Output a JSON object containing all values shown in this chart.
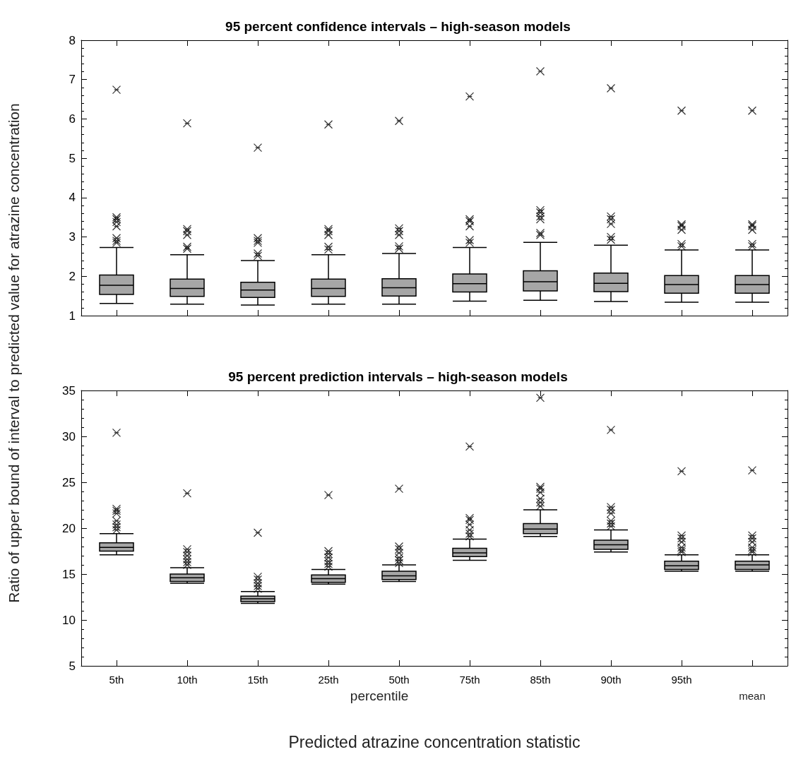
{
  "chart_data": [
    {
      "type": "box",
      "title": "95 percent confidence intervals – high-season models",
      "ylabel": "Ratio of upper bound of interval to predicted value for atrazine concentration",
      "categories": [
        null,
        null,
        null,
        null,
        null,
        null,
        null,
        null,
        null,
        null
      ],
      "color": "#a6a6a6",
      "ylim": [
        1,
        8
      ],
      "yticks": [
        1,
        2,
        3,
        4,
        5,
        6,
        7,
        8
      ],
      "tick_labels": "y",
      "grid": false,
      "boxes": [
        {
          "low": 1.31,
          "q1": 1.54,
          "median": 1.77,
          "q3": 2.03,
          "high": 2.73,
          "outliers": [
            6.74,
            3.5,
            3.45,
            3.38,
            3.27,
            2.97,
            2.9,
            2.85
          ]
        },
        {
          "low": 1.29,
          "q1": 1.49,
          "median": 1.69,
          "q3": 1.93,
          "high": 2.55,
          "outliers": [
            5.89,
            3.2,
            3.15,
            3.05,
            2.75,
            2.7
          ]
        },
        {
          "low": 1.27,
          "q1": 1.46,
          "median": 1.65,
          "q3": 1.85,
          "high": 2.4,
          "outliers": [
            5.27,
            2.97,
            2.9,
            2.85,
            2.58,
            2.52
          ]
        },
        {
          "low": 1.29,
          "q1": 1.49,
          "median": 1.69,
          "q3": 1.93,
          "high": 2.55,
          "outliers": [
            5.86,
            3.2,
            3.15,
            3.05,
            2.75,
            2.68
          ]
        },
        {
          "low": 1.29,
          "q1": 1.5,
          "median": 1.71,
          "q3": 1.94,
          "high": 2.58,
          "outliers": [
            5.95,
            3.22,
            3.15,
            3.05,
            2.76,
            2.7
          ]
        },
        {
          "low": 1.37,
          "q1": 1.6,
          "median": 1.81,
          "q3": 2.06,
          "high": 2.73,
          "outliers": [
            6.57,
            3.45,
            3.4,
            3.27,
            2.92,
            2.85
          ]
        },
        {
          "low": 1.39,
          "q1": 1.63,
          "median": 1.86,
          "q3": 2.14,
          "high": 2.86,
          "outliers": [
            7.21,
            3.68,
            3.62,
            3.52,
            3.45,
            3.1,
            3.05
          ]
        },
        {
          "low": 1.36,
          "q1": 1.61,
          "median": 1.82,
          "q3": 2.08,
          "high": 2.79,
          "outliers": [
            6.78,
            3.52,
            3.45,
            3.33,
            3.0,
            2.93
          ]
        },
        {
          "low": 1.34,
          "q1": 1.57,
          "median": 1.79,
          "q3": 2.02,
          "high": 2.67,
          "outliers": [
            6.21,
            3.32,
            3.28,
            3.18,
            2.82,
            2.76
          ]
        },
        {
          "low": 1.34,
          "q1": 1.57,
          "median": 1.79,
          "q3": 2.02,
          "high": 2.67,
          "outliers": [
            6.21,
            3.32,
            3.28,
            3.18,
            2.82,
            2.76
          ]
        }
      ]
    },
    {
      "type": "box",
      "title": "95 percent prediction intervals – high-season models",
      "xlabel": "Predicted atrazine concentration statistic",
      "annotations": [
        "percentile",
        "mean"
      ],
      "categories": [
        "5th",
        "10th",
        "15th",
        "25th",
        "50th",
        "75th",
        "85th",
        "90th",
        "95th",
        null
      ],
      "color": "#a6a6a6",
      "ylim": [
        5,
        35
      ],
      "yticks": [
        5,
        10,
        15,
        20,
        25,
        30,
        35
      ],
      "grid": false,
      "boxes": [
        {
          "low": 17.1,
          "q1": 17.5,
          "median": 17.9,
          "q3": 18.4,
          "high": 19.4,
          "outliers": [
            30.4,
            22.1,
            21.9,
            21.6,
            20.8,
            20.4,
            20.1,
            19.8
          ]
        },
        {
          "low": 14.0,
          "q1": 14.2,
          "median": 14.6,
          "q3": 15.0,
          "high": 15.7,
          "outliers": [
            23.8,
            17.7,
            17.4,
            17.0,
            16.6,
            16.3,
            16.0
          ]
        },
        {
          "low": 11.8,
          "q1": 12.0,
          "median": 12.3,
          "q3": 12.6,
          "high": 13.1,
          "outliers": [
            19.5,
            14.7,
            14.4,
            14.0,
            13.7,
            13.4
          ]
        },
        {
          "low": 13.9,
          "q1": 14.1,
          "median": 14.5,
          "q3": 14.9,
          "high": 15.5,
          "outliers": [
            23.6,
            17.5,
            17.2,
            16.8,
            16.4,
            16.1,
            15.8
          ]
        },
        {
          "low": 14.2,
          "q1": 14.4,
          "median": 14.8,
          "q3": 15.3,
          "high": 16.0,
          "outliers": [
            24.3,
            18.0,
            17.7,
            17.3,
            16.8,
            16.5,
            16.2
          ]
        },
        {
          "low": 16.5,
          "q1": 16.9,
          "median": 17.3,
          "q3": 17.8,
          "high": 18.8,
          "outliers": [
            28.9,
            21.1,
            20.9,
            20.4,
            19.8,
            19.4,
            19.1
          ]
        },
        {
          "low": 19.1,
          "q1": 19.4,
          "median": 19.9,
          "q3": 20.5,
          "high": 22.0,
          "outliers": [
            34.2,
            24.5,
            24.3,
            23.9,
            23.2,
            22.8,
            22.4
          ]
        },
        {
          "low": 17.4,
          "q1": 17.7,
          "median": 18.2,
          "q3": 18.7,
          "high": 19.8,
          "outliers": [
            30.7,
            22.3,
            22.0,
            21.6,
            20.8,
            20.5,
            20.2
          ]
        },
        {
          "low": 15.3,
          "q1": 15.5,
          "median": 15.9,
          "q3": 16.4,
          "high": 17.1,
          "outliers": [
            26.2,
            19.2,
            18.9,
            18.5,
            17.9,
            17.6,
            17.4
          ]
        },
        {
          "low": 15.3,
          "q1": 15.5,
          "median": 16.0,
          "q3": 16.4,
          "high": 17.1,
          "outliers": [
            26.3,
            19.2,
            18.9,
            18.5,
            17.9,
            17.6,
            17.4
          ]
        }
      ]
    }
  ]
}
